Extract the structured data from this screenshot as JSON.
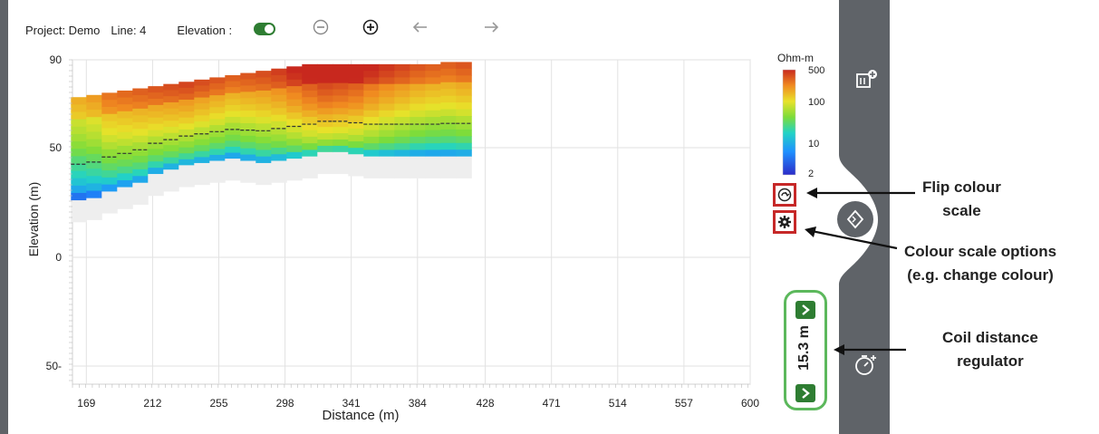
{
  "header": {
    "project": "Project: Demo",
    "line": "Line: 4",
    "elevation_label": "Elevation :"
  },
  "icons": {
    "zoom_out": "minus-circle-icon",
    "zoom_in": "plus-circle-icon",
    "back": "arrow-left-icon",
    "forward": "arrow-right-icon",
    "flip": "flip-scale-icon",
    "settings": "gear-icon",
    "add_panel": "add-panel-icon",
    "diamond_nav": "diamond-nav-icon",
    "coil_add": "stopwatch-add-icon"
  },
  "colorbar": {
    "unit": "Ohm-m",
    "ticks": [
      "500",
      "100",
      "10",
      "2"
    ]
  },
  "callouts": {
    "flip_line1": "Flip colour",
    "flip_line2": "scale",
    "options_line1": "Colour scale options",
    "options_line2": "(e.g. change colour)",
    "coil_line1": "Coil distance",
    "coil_line2": "regulator"
  },
  "coil": {
    "value": "15.3 m"
  },
  "colors": {
    "accent_green": "#2e7d32",
    "highlight_green": "#5cb85c",
    "highlight_red": "#c62828",
    "sidebar_dark": "#5f6368"
  },
  "chart_data": {
    "type": "heatmap",
    "xlabel": "Distance (m)",
    "ylabel": "Elevation (m)",
    "xlim": [
      160,
      600
    ],
    "ylim": [
      -55,
      90
    ],
    "x_ticks": [
      "169",
      "212",
      "255",
      "298",
      "341",
      "384",
      "428",
      "471",
      "514",
      "557",
      "600"
    ],
    "y_ticks": [
      "90",
      "50",
      "0",
      "50-"
    ],
    "colorbar_unit": "Ohm-m",
    "colorbar_range": [
      2,
      500
    ],
    "colorbar_scale": "log",
    "columns": [
      {
        "x": 164,
        "top": 73,
        "bottom": 26,
        "mid": 60
      },
      {
        "x": 174,
        "top": 74,
        "bottom": 27,
        "mid": 70
      },
      {
        "x": 184,
        "top": 75,
        "bottom": 30,
        "mid": 100
      },
      {
        "x": 194,
        "top": 76,
        "bottom": 32,
        "mid": 110
      },
      {
        "x": 204,
        "top": 77,
        "bottom": 34,
        "mid": 120
      },
      {
        "x": 214,
        "top": 78,
        "bottom": 38,
        "mid": 130
      },
      {
        "x": 224,
        "top": 79,
        "bottom": 40,
        "mid": 140
      },
      {
        "x": 234,
        "top": 80,
        "bottom": 42,
        "mid": 150
      },
      {
        "x": 244,
        "top": 81,
        "bottom": 43,
        "mid": 140
      },
      {
        "x": 254,
        "top": 82,
        "bottom": 44,
        "mid": 130
      },
      {
        "x": 264,
        "top": 83,
        "bottom": 45,
        "mid": 120
      },
      {
        "x": 274,
        "top": 84,
        "bottom": 44,
        "mid": 130
      },
      {
        "x": 284,
        "top": 85,
        "bottom": 43,
        "mid": 140
      },
      {
        "x": 294,
        "top": 86,
        "bottom": 44,
        "mid": 160
      },
      {
        "x": 304,
        "top": 87,
        "bottom": 45,
        "mid": 200
      },
      {
        "x": 314,
        "top": 88,
        "bottom": 46,
        "mid": 250
      },
      {
        "x": 324,
        "top": 88,
        "bottom": 48,
        "mid": 300
      },
      {
        "x": 334,
        "top": 88,
        "bottom": 48,
        "mid": 280
      },
      {
        "x": 344,
        "top": 88,
        "bottom": 47,
        "mid": 250
      },
      {
        "x": 354,
        "top": 88,
        "bottom": 46,
        "mid": 200
      },
      {
        "x": 364,
        "top": 88,
        "bottom": 46,
        "mid": 170
      },
      {
        "x": 374,
        "top": 88,
        "bottom": 46,
        "mid": 150
      },
      {
        "x": 384,
        "top": 88,
        "bottom": 46,
        "mid": 130
      },
      {
        "x": 394,
        "top": 88,
        "bottom": 46,
        "mid": 120
      },
      {
        "x": 404,
        "top": 89,
        "bottom": 46,
        "mid": 120
      },
      {
        "x": 414,
        "top": 89,
        "bottom": 46,
        "mid": 130
      }
    ]
  }
}
